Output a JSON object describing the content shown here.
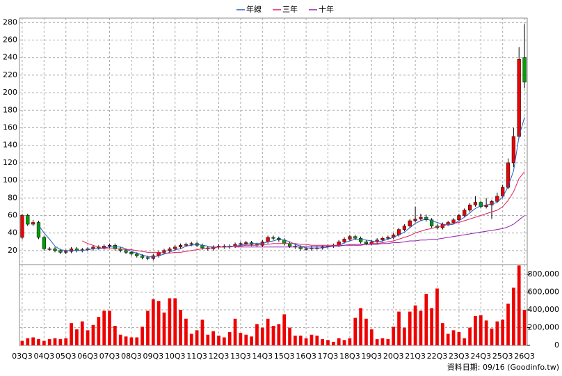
{
  "chart_data": {
    "type": "candlestick",
    "categories": [
      "03Q3",
      null,
      null,
      null,
      "04Q3",
      null,
      null,
      null,
      "05Q3",
      null,
      null,
      null,
      "06Q3",
      null,
      null,
      null,
      "07Q3",
      null,
      null,
      null,
      "08Q3",
      null,
      null,
      null,
      "09Q3",
      null,
      null,
      null,
      "10Q3",
      null,
      null,
      null,
      "11Q3",
      null,
      null,
      null,
      "12Q3",
      null,
      null,
      null,
      "13Q3",
      null,
      null,
      null,
      "14Q3",
      null,
      null,
      null,
      "15Q3",
      null,
      null,
      null,
      "16Q3",
      null,
      null,
      null,
      "17Q3",
      null,
      null,
      null,
      "18Q3",
      null,
      null,
      null,
      "19Q3",
      null,
      null,
      null,
      "20Q3",
      null,
      null,
      null,
      "21Q3",
      null,
      null,
      null,
      "22Q3",
      null,
      null,
      null,
      "23Q3",
      null,
      null,
      null,
      "24Q3",
      null,
      null,
      null,
      "25Q3",
      null,
      null,
      null,
      "26Q3"
    ],
    "open": [
      35,
      60,
      50,
      52,
      35,
      22,
      22,
      20,
      18,
      19,
      22,
      20,
      21,
      22,
      24,
      23,
      25,
      26,
      22,
      20,
      18,
      16,
      14,
      12,
      11,
      14,
      18,
      20,
      22,
      24,
      26,
      27,
      28,
      26,
      23,
      22,
      24,
      25,
      24,
      25,
      27,
      28,
      29,
      27,
      26,
      30,
      35,
      34,
      32,
      28,
      25,
      24,
      22,
      22,
      23,
      23,
      24,
      25,
      26,
      30,
      33,
      36,
      34,
      30,
      28,
      30,
      32,
      34,
      35,
      38,
      44,
      48,
      54,
      56,
      58,
      55,
      48,
      46,
      50,
      52,
      55,
      60,
      66,
      72,
      75,
      70,
      72,
      76,
      82,
      92,
      120,
      150,
      240
    ],
    "high": [
      62,
      62,
      55,
      54,
      37,
      24,
      24,
      22,
      21,
      24,
      24,
      23,
      24,
      26,
      26,
      27,
      28,
      28,
      24,
      22,
      20,
      18,
      16,
      14,
      16,
      20,
      22,
      24,
      26,
      28,
      29,
      30,
      30,
      28,
      25,
      26,
      27,
      27,
      27,
      29,
      30,
      31,
      31,
      29,
      32,
      37,
      37,
      36,
      34,
      30,
      27,
      26,
      24,
      25,
      25,
      26,
      27,
      28,
      32,
      35,
      38,
      38,
      36,
      32,
      32,
      34,
      36,
      37,
      40,
      46,
      50,
      56,
      70,
      62,
      61,
      57,
      50,
      52,
      54,
      57,
      62,
      68,
      74,
      82,
      77,
      80,
      78,
      86,
      95,
      125,
      160,
      252,
      278
    ],
    "low": [
      33,
      48,
      48,
      33,
      20,
      20,
      18,
      16,
      16,
      17,
      18,
      18,
      19,
      20,
      21,
      21,
      23,
      20,
      18,
      16,
      14,
      12,
      10,
      9,
      9,
      12,
      16,
      18,
      20,
      22,
      24,
      25,
      24,
      21,
      20,
      20,
      22,
      22,
      22,
      23,
      25,
      26,
      25,
      24,
      24,
      28,
      32,
      30,
      26,
      23,
      22,
      20,
      20,
      20,
      21,
      21,
      22,
      23,
      24,
      28,
      31,
      32,
      28,
      26,
      26,
      28,
      30,
      32,
      33,
      36,
      42,
      46,
      52,
      54,
      53,
      46,
      44,
      44,
      48,
      50,
      53,
      58,
      64,
      70,
      68,
      68,
      56,
      74,
      80,
      90,
      115,
      148,
      205
    ],
    "close": [
      60,
      50,
      52,
      35,
      22,
      22,
      20,
      18,
      19,
      22,
      20,
      21,
      22,
      24,
      23,
      25,
      26,
      22,
      20,
      18,
      16,
      14,
      12,
      11,
      14,
      18,
      20,
      22,
      24,
      26,
      27,
      28,
      26,
      23,
      22,
      24,
      25,
      24,
      25,
      27,
      28,
      29,
      27,
      26,
      30,
      35,
      34,
      32,
      28,
      25,
      24,
      22,
      22,
      23,
      23,
      24,
      25,
      26,
      30,
      33,
      36,
      34,
      30,
      28,
      30,
      32,
      34,
      35,
      38,
      44,
      48,
      54,
      56,
      58,
      55,
      48,
      46,
      50,
      52,
      55,
      60,
      66,
      72,
      75,
      70,
      72,
      76,
      82,
      92,
      120,
      150,
      238,
      212
    ],
    "up_color": "#ee0000",
    "down_color": "#00a000",
    "series": [
      {
        "name": "年線",
        "color": "#1f5fbf",
        "values": [
          null,
          null,
          null,
          49,
          40,
          33,
          25,
          21,
          20,
          20,
          20,
          20,
          21,
          22,
          22,
          23,
          24,
          24,
          24,
          22,
          19,
          17,
          15,
          13,
          13,
          14,
          16,
          18,
          21,
          22,
          25,
          26,
          27,
          26,
          25,
          24,
          24,
          24,
          24,
          25,
          26,
          27,
          28,
          28,
          28,
          30,
          31,
          33,
          32,
          30,
          27,
          25,
          23,
          23,
          23,
          23,
          24,
          25,
          26,
          29,
          31,
          33,
          33,
          32,
          31,
          30,
          31,
          33,
          35,
          38,
          41,
          46,
          51,
          54,
          56,
          54,
          52,
          50,
          49,
          50,
          54,
          58,
          63,
          68,
          71,
          72,
          73,
          75,
          81,
          93,
          111,
          150,
          172
        ]
      },
      {
        "name": "三年",
        "color": "#e0205a",
        "values": [
          null,
          null,
          null,
          null,
          null,
          null,
          null,
          null,
          null,
          null,
          null,
          31,
          28,
          26,
          24,
          22,
          22,
          22,
          22,
          21,
          21,
          20,
          19,
          18,
          18,
          18,
          17,
          17,
          18,
          18,
          19,
          20,
          21,
          22,
          23,
          23,
          24,
          24,
          25,
          25,
          25,
          26,
          26,
          26,
          27,
          27,
          28,
          28,
          28,
          28,
          28,
          27,
          27,
          26,
          26,
          26,
          26,
          26,
          26,
          26,
          27,
          27,
          27,
          27,
          28,
          28,
          29,
          30,
          31,
          33,
          35,
          37,
          40,
          42,
          44,
          45,
          47,
          48,
          50,
          51,
          52,
          54,
          56,
          58,
          60,
          62,
          64,
          66,
          70,
          77,
          87,
          102,
          110
        ]
      },
      {
        "name": "十年",
        "color": "#9020b0",
        "values": [
          null,
          null,
          null,
          null,
          null,
          null,
          null,
          null,
          null,
          null,
          null,
          null,
          null,
          null,
          null,
          null,
          null,
          null,
          null,
          null,
          null,
          null,
          null,
          null,
          null,
          null,
          null,
          null,
          null,
          null,
          null,
          null,
          null,
          null,
          null,
          null,
          null,
          null,
          null,
          24,
          24,
          24,
          24,
          24,
          24,
          24,
          24,
          24,
          24,
          24,
          24,
          24,
          25,
          25,
          25,
          25,
          25,
          25,
          25,
          26,
          26,
          26,
          26,
          27,
          27,
          27,
          28,
          28,
          29,
          29,
          30,
          31,
          31,
          32,
          32,
          33,
          33,
          34,
          35,
          36,
          37,
          38,
          39,
          40,
          41,
          42,
          43,
          44,
          45,
          47,
          50,
          55,
          60
        ]
      }
    ],
    "volume": {
      "color": "#ee0000",
      "values": [
        50000,
        80000,
        90000,
        70000,
        50000,
        70000,
        80000,
        70000,
        80000,
        250000,
        180000,
        270000,
        170000,
        230000,
        320000,
        390000,
        390000,
        220000,
        120000,
        100000,
        90000,
        90000,
        210000,
        390000,
        520000,
        500000,
        370000,
        530000,
        530000,
        400000,
        300000,
        130000,
        170000,
        290000,
        120000,
        160000,
        110000,
        90000,
        150000,
        300000,
        140000,
        120000,
        100000,
        240000,
        200000,
        300000,
        220000,
        240000,
        350000,
        200000,
        110000,
        110000,
        80000,
        120000,
        110000,
        70000,
        60000,
        40000,
        80000,
        60000,
        80000,
        310000,
        420000,
        300000,
        180000,
        70000,
        80000,
        70000,
        210000,
        380000,
        200000,
        380000,
        450000,
        390000,
        580000,
        420000,
        640000,
        250000,
        130000,
        170000,
        150000,
        80000,
        200000,
        330000,
        340000,
        280000,
        190000,
        270000,
        290000,
        470000,
        650000,
        900000,
        400000
      ]
    },
    "ylim": [
      4,
      285
    ],
    "yticks": [
      20,
      40,
      60,
      80,
      100,
      120,
      140,
      160,
      180,
      200,
      220,
      240,
      260,
      280
    ],
    "y2lim": [
      0,
      910000
    ],
    "y2ticks": [
      {
        "value": 0,
        "label": "0"
      },
      {
        "value": 200000,
        "label": "200,000"
      },
      {
        "value": 400000,
        "label": "400,000"
      },
      {
        "value": 600000,
        "label": "600,000"
      },
      {
        "value": 800000,
        "label": "800,000"
      }
    ],
    "grid": true,
    "legend": "top",
    "footnote": "資料日期: 09/16  (Goodinfo.tw)"
  }
}
